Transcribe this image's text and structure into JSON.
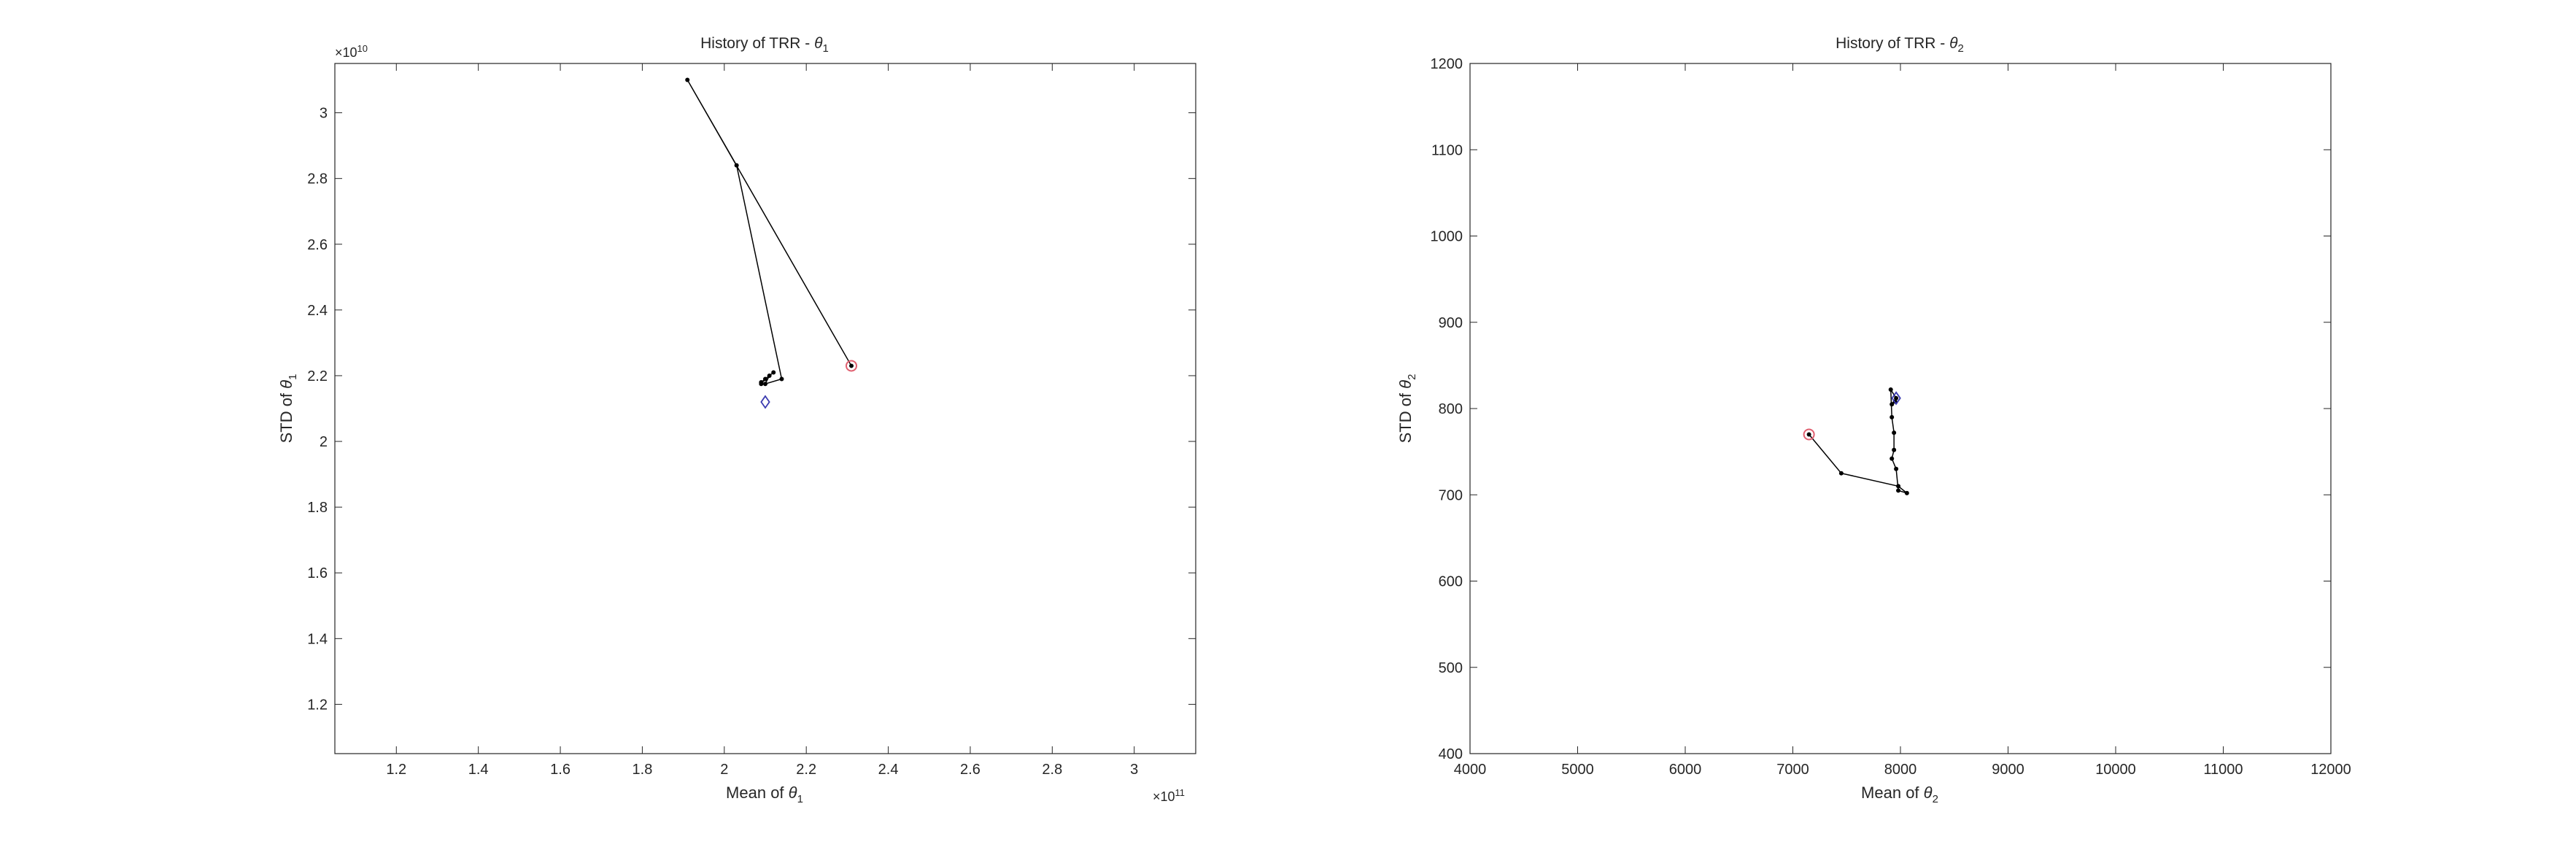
{
  "chart_data": [
    {
      "type": "scatter",
      "title_prefix": "History of TRR - ",
      "title_symbol": "θ",
      "title_subscript": "1",
      "xlabel_prefix": "Mean of ",
      "ylabel_prefix": "STD of ",
      "symbol": "θ",
      "subscript": "1",
      "x_multiplier": "×10",
      "x_exponent": "11",
      "y_multiplier": "×10",
      "y_exponent": "10",
      "xlim": [
        1.05,
        3.15
      ],
      "ylim": [
        1.05,
        3.15
      ],
      "xticks": [
        1.2,
        1.4,
        1.6,
        1.8,
        2,
        2.2,
        2.4,
        2.6,
        2.8,
        3
      ],
      "xtick_labels": [
        "1.2",
        "1.4",
        "1.6",
        "1.8",
        "2",
        "2.2",
        "2.4",
        "2.6",
        "2.8",
        "3"
      ],
      "yticks": [
        1.2,
        1.4,
        1.6,
        1.8,
        2,
        2.2,
        2.4,
        2.6,
        2.8,
        3
      ],
      "ytick_labels": [
        "1.2",
        "1.4",
        "1.6",
        "1.8",
        "2",
        "2.2",
        "2.4",
        "2.6",
        "2.8",
        "3"
      ],
      "history": [
        {
          "x": 2.31,
          "y": 2.23
        },
        {
          "x": 1.91,
          "y": 3.1
        },
        {
          "x": 2.03,
          "y": 2.84
        },
        {
          "x": 2.14,
          "y": 2.19
        },
        {
          "x": 2.1,
          "y": 2.175
        },
        {
          "x": 2.11,
          "y": 2.2
        },
        {
          "x": 2.09,
          "y": 2.18
        },
        {
          "x": 2.12,
          "y": 2.21
        },
        {
          "x": 2.1,
          "y": 2.19
        },
        {
          "x": 2.09,
          "y": 2.175
        }
      ],
      "start_marker": {
        "x": 2.31,
        "y": 2.23,
        "shape": "circle",
        "color": "#e06070"
      },
      "reference_marker": {
        "x": 2.1,
        "y": 2.12,
        "shape": "diamond",
        "color": "#3a3ab0"
      },
      "line_color": "#000000"
    },
    {
      "type": "scatter",
      "title_prefix": "History of TRR - ",
      "title_symbol": "θ",
      "title_subscript": "2",
      "xlabel_prefix": "Mean of ",
      "ylabel_prefix": "STD of ",
      "symbol": "θ",
      "subscript": "2",
      "x_multiplier": "",
      "x_exponent": "",
      "y_multiplier": "",
      "y_exponent": "",
      "xlim": [
        4000,
        12000
      ],
      "ylim": [
        400,
        1200
      ],
      "xticks": [
        4000,
        5000,
        6000,
        7000,
        8000,
        9000,
        10000,
        11000,
        12000
      ],
      "xtick_labels": [
        "4000",
        "5000",
        "6000",
        "7000",
        "8000",
        "9000",
        "10000",
        "11000",
        "12000"
      ],
      "yticks": [
        400,
        500,
        600,
        700,
        800,
        900,
        1000,
        1100,
        1200
      ],
      "ytick_labels": [
        "400",
        "500",
        "600",
        "700",
        "800",
        "900",
        "1000",
        "1100",
        "1200"
      ],
      "history": [
        {
          "x": 7150,
          "y": 770
        },
        {
          "x": 7450,
          "y": 725
        },
        {
          "x": 7980,
          "y": 710
        },
        {
          "x": 8060,
          "y": 702
        },
        {
          "x": 7980,
          "y": 705
        },
        {
          "x": 7960,
          "y": 730
        },
        {
          "x": 7920,
          "y": 742
        },
        {
          "x": 7940,
          "y": 752
        },
        {
          "x": 7940,
          "y": 772
        },
        {
          "x": 7920,
          "y": 790
        },
        {
          "x": 7910,
          "y": 822
        },
        {
          "x": 7960,
          "y": 812
        },
        {
          "x": 7920,
          "y": 805
        },
        {
          "x": 7950,
          "y": 808
        }
      ],
      "start_marker": {
        "x": 7150,
        "y": 770,
        "shape": "circle",
        "color": "#e06070"
      },
      "reference_marker": {
        "x": 7960,
        "y": 812,
        "shape": "diamond",
        "color": "#3a3ab0"
      },
      "line_color": "#000000"
    }
  ]
}
